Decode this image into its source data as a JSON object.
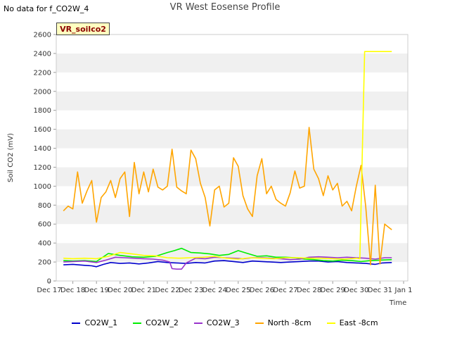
{
  "no_data_note": "No data for f_CO2W_4",
  "chart_data": {
    "type": "line",
    "title": "VR West Eosense Profile",
    "site_tag": "VR_soilco2",
    "xlabel": "Time",
    "ylabel": "Soil CO2 (mV)",
    "ylim": [
      0,
      2600
    ],
    "xlim": [
      17,
      32
    ],
    "yticks": [
      0,
      200,
      400,
      600,
      800,
      1000,
      1200,
      1400,
      1600,
      1800,
      2000,
      2200,
      2400,
      2600
    ],
    "xticks": [
      {
        "x": 17,
        "label": "Dec 17"
      },
      {
        "x": 18,
        "label": "Dec 18"
      },
      {
        "x": 19,
        "label": "Dec 19"
      },
      {
        "x": 20,
        "label": "Dec 20"
      },
      {
        "x": 21,
        "label": "Dec 21"
      },
      {
        "x": 22,
        "label": "Dec 22"
      },
      {
        "x": 23,
        "label": "Dec 23"
      },
      {
        "x": 24,
        "label": "Dec 24"
      },
      {
        "x": 25,
        "label": "Dec 25"
      },
      {
        "x": 26,
        "label": "Dec 26"
      },
      {
        "x": 27,
        "label": "Dec 27"
      },
      {
        "x": 28,
        "label": "Dec 28"
      },
      {
        "x": 29,
        "label": "Dec 29"
      },
      {
        "x": 30,
        "label": "Dec 30"
      },
      {
        "x": 31,
        "label": "Dec 31"
      },
      {
        "x": 32,
        "label": "Jan 1"
      }
    ],
    "grid": "horizontal-bands",
    "legend_position": "bottom",
    "series": [
      {
        "name": "CO2W_1",
        "color": "#0000cc",
        "x": [
          17.6,
          18.0,
          18.5,
          18.8,
          19.0,
          19.3,
          19.6,
          20.0,
          20.4,
          20.8,
          21.2,
          21.6,
          22.0,
          22.4,
          22.8,
          23.2,
          23.6,
          24.0,
          24.4,
          24.8,
          25.2,
          25.6,
          26.0,
          26.4,
          26.8,
          27.2,
          27.6,
          28.0,
          28.4,
          28.8,
          29.2,
          29.6,
          30.0,
          30.4,
          30.8,
          31.1,
          31.5
        ],
        "y": [
          170,
          175,
          165,
          160,
          150,
          175,
          195,
          185,
          190,
          180,
          190,
          205,
          195,
          190,
          185,
          195,
          190,
          210,
          215,
          205,
          195,
          210,
          205,
          200,
          195,
          200,
          205,
          210,
          210,
          200,
          205,
          195,
          190,
          185,
          175,
          190,
          195
        ]
      },
      {
        "name": "CO2W_2",
        "color": "#00ee00",
        "x": [
          17.6,
          18.0,
          18.5,
          19.0,
          19.5,
          20.0,
          20.5,
          21.0,
          21.5,
          22.0,
          22.3,
          22.6,
          23.0,
          23.4,
          23.8,
          24.2,
          24.6,
          25.0,
          25.4,
          25.8,
          26.2,
          26.6,
          27.0,
          27.4,
          27.8,
          28.2,
          28.6,
          29.0,
          29.4,
          29.8,
          30.2,
          30.6,
          31.0,
          31.5
        ],
        "y": [
          215,
          210,
          215,
          205,
          290,
          270,
          255,
          250,
          260,
          300,
          320,
          345,
          300,
          295,
          285,
          270,
          280,
          320,
          290,
          260,
          265,
          250,
          250,
          245,
          230,
          225,
          215,
          210,
          220,
          215,
          205,
          215,
          220,
          225
        ]
      },
      {
        "name": "CO2W_3",
        "color": "#9933cc",
        "x": [
          17.6,
          18.0,
          18.5,
          19.0,
          19.4,
          19.8,
          20.2,
          20.6,
          21.0,
          21.4,
          21.8,
          22.1,
          22.2,
          22.4,
          22.6,
          22.8,
          23.2,
          23.6,
          24.0,
          24.4,
          24.8,
          25.2,
          25.6,
          26.0,
          26.4,
          26.8,
          27.2,
          27.6,
          28.0,
          28.4,
          28.8,
          29.2,
          29.6,
          30.0,
          30.4,
          30.8,
          31.2,
          31.5
        ],
        "y": [
          200,
          205,
          210,
          195,
          220,
          250,
          245,
          240,
          235,
          230,
          220,
          200,
          130,
          125,
          125,
          190,
          240,
          235,
          250,
          245,
          240,
          235,
          245,
          245,
          240,
          235,
          225,
          230,
          250,
          255,
          250,
          245,
          250,
          245,
          240,
          230,
          245,
          245
        ]
      },
      {
        "name": "North -8cm",
        "color": "#ffa500",
        "x": [
          17.6,
          17.8,
          18.0,
          18.2,
          18.4,
          18.6,
          18.8,
          19.0,
          19.2,
          19.4,
          19.6,
          19.8,
          20.0,
          20.2,
          20.4,
          20.6,
          20.8,
          21.0,
          21.2,
          21.4,
          21.6,
          21.8,
          22.0,
          22.2,
          22.4,
          22.6,
          22.8,
          23.0,
          23.2,
          23.4,
          23.6,
          23.8,
          24.0,
          24.2,
          24.4,
          24.6,
          24.8,
          25.0,
          25.2,
          25.4,
          25.6,
          25.8,
          26.0,
          26.2,
          26.4,
          26.6,
          26.8,
          27.0,
          27.2,
          27.4,
          27.6,
          27.8,
          28.0,
          28.2,
          28.4,
          28.6,
          28.8,
          29.0,
          29.2,
          29.4,
          29.6,
          29.8,
          30.0,
          30.2,
          30.4,
          30.6,
          30.8,
          31.0,
          31.2,
          31.4,
          31.5
        ],
        "y": [
          740,
          790,
          760,
          1150,
          820,
          950,
          1060,
          620,
          880,
          940,
          1060,
          880,
          1080,
          1150,
          680,
          1250,
          920,
          1150,
          940,
          1180,
          990,
          960,
          1000,
          1390,
          990,
          950,
          920,
          1380,
          1290,
          1030,
          880,
          580,
          960,
          1000,
          780,
          820,
          1300,
          1210,
          900,
          760,
          680,
          1110,
          1290,
          920,
          1000,
          860,
          820,
          790,
          930,
          1160,
          980,
          1000,
          1620,
          1180,
          1080,
          900,
          1110,
          960,
          1030,
          790,
          840,
          740,
          1000,
          1220,
          780,
          170,
          1010,
          180,
          600,
          560,
          540
        ]
      },
      {
        "name": "East -8cm",
        "color": "#ffff00",
        "x": [
          17.6,
          18.0,
          18.5,
          19.0,
          19.5,
          20.0,
          20.5,
          21.0,
          21.5,
          22.0,
          22.5,
          23.0,
          23.5,
          24.0,
          24.5,
          25.0,
          25.5,
          26.0,
          26.5,
          27.0,
          27.5,
          28.0,
          28.5,
          29.0,
          29.5,
          30.0,
          30.15,
          30.35,
          30.45,
          31.0,
          31.5
        ],
        "y": [
          240,
          235,
          240,
          235,
          260,
          300,
          285,
          270,
          265,
          245,
          240,
          245,
          250,
          260,
          240,
          230,
          245,
          240,
          235,
          245,
          245,
          240,
          240,
          235,
          230,
          240,
          235,
          2420,
          2420,
          2420,
          2420
        ]
      }
    ]
  }
}
